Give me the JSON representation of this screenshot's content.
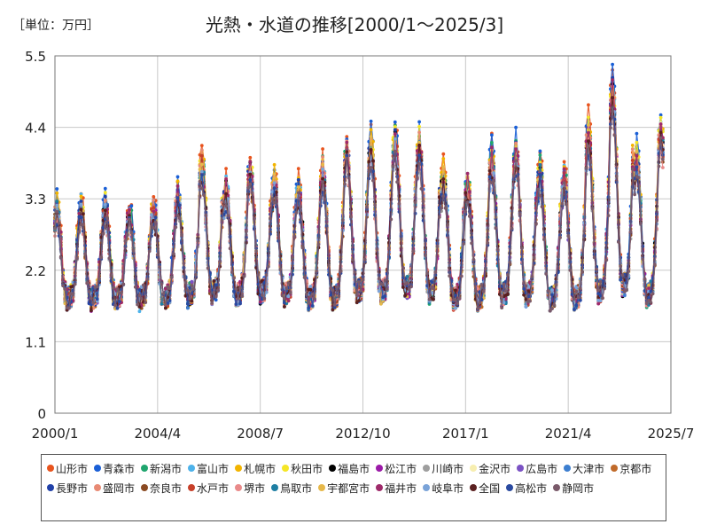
{
  "header": {
    "unit_label": "［単位：万円］",
    "title": "光熱・水道の推移[2000/1～2025/3]"
  },
  "chart_data": {
    "type": "line",
    "title": "光熱・水道の推移[2000/1～2025/3]",
    "ylabel": "［単位：万円］",
    "ylim": [
      0,
      5.5
    ],
    "yticks": [
      0,
      1.1,
      2.2,
      3.3,
      4.4,
      5.5
    ],
    "ytick_labels": [
      "0",
      "1.1",
      "2.2",
      "3.3",
      "4.4",
      "5.5"
    ],
    "xlim": [
      "2000/1",
      "2025/7"
    ],
    "xticks": [
      "2000/1",
      "2004/4",
      "2008/7",
      "2012/10",
      "2017/1",
      "2021/4",
      "2025/7"
    ],
    "grid": true,
    "legend_position": "bottom",
    "peaks_approx": [
      {
        "year": 2001,
        "peak": 3.2,
        "trough": 1.7
      },
      {
        "year": 2002,
        "peak": 3.2,
        "trough": 1.7
      },
      {
        "year": 2003,
        "peak": 3.1,
        "trough": 1.7
      },
      {
        "year": 2004,
        "peak": 3.2,
        "trough": 1.7
      },
      {
        "year": 2005,
        "peak": 3.4,
        "trough": 1.75
      },
      {
        "year": 2006,
        "peak": 3.9,
        "trough": 1.8
      },
      {
        "year": 2007,
        "peak": 3.5,
        "trough": 1.75
      },
      {
        "year": 2008,
        "peak": 3.8,
        "trough": 1.8
      },
      {
        "year": 2009,
        "peak": 3.6,
        "trough": 1.75
      },
      {
        "year": 2010,
        "peak": 3.5,
        "trough": 1.7
      },
      {
        "year": 2011,
        "peak": 3.8,
        "trough": 1.7
      },
      {
        "year": 2012,
        "peak": 4.1,
        "trough": 1.8
      },
      {
        "year": 2013,
        "peak": 4.2,
        "trough": 1.8
      },
      {
        "year": 2014,
        "peak": 4.3,
        "trough": 1.85
      },
      {
        "year": 2015,
        "peak": 4.2,
        "trough": 1.8
      },
      {
        "year": 2016,
        "peak": 3.7,
        "trough": 1.7
      },
      {
        "year": 2017,
        "peak": 3.6,
        "trough": 1.7
      },
      {
        "year": 2018,
        "peak": 4.0,
        "trough": 1.75
      },
      {
        "year": 2019,
        "peak": 4.1,
        "trough": 1.75
      },
      {
        "year": 2020,
        "peak": 3.8,
        "trough": 1.7
      },
      {
        "year": 2021,
        "peak": 3.7,
        "trough": 1.7
      },
      {
        "year": 2022,
        "peak": 4.4,
        "trough": 1.8
      },
      {
        "year": 2023,
        "peak": 5.1,
        "trough": 1.9
      },
      {
        "year": 2024,
        "peak": 4.0,
        "trough": 1.75
      },
      {
        "year": 2025,
        "peak": 4.4,
        "trough": 2.2
      }
    ],
    "series": [
      {
        "name": "山形市",
        "color": "#e8541e",
        "amp": 1.08,
        "phase": 0
      },
      {
        "name": "青森市",
        "color": "#1a5fd6",
        "amp": 1.06,
        "phase": 1
      },
      {
        "name": "新潟市",
        "color": "#1fa56e",
        "amp": 1.0,
        "phase": 2
      },
      {
        "name": "富山市",
        "color": "#4db2ea",
        "amp": 1.0,
        "phase": 3
      },
      {
        "name": "札幌市",
        "color": "#f2b400",
        "amp": 1.03,
        "phase": 4
      },
      {
        "name": "秋田市",
        "color": "#f5e626",
        "amp": 1.02,
        "phase": 5
      },
      {
        "name": "福島市",
        "color": "#000000",
        "amp": 0.95,
        "phase": 6
      },
      {
        "name": "松江市",
        "color": "#9b1aa8",
        "amp": 0.94,
        "phase": 7
      },
      {
        "name": "川崎市",
        "color": "#9e9e9e",
        "amp": 0.88,
        "phase": 8
      },
      {
        "name": "金沢市",
        "color": "#f7eeb0",
        "amp": 0.96,
        "phase": 9
      },
      {
        "name": "広島市",
        "color": "#7b52c4",
        "amp": 0.9,
        "phase": 10
      },
      {
        "name": "大津市",
        "color": "#3d7fd0",
        "amp": 0.93,
        "phase": 11
      },
      {
        "name": "京都市",
        "color": "#c06a2a",
        "amp": 0.91,
        "phase": 12
      },
      {
        "name": "長野市",
        "color": "#2040a8",
        "amp": 0.98,
        "phase": 13
      },
      {
        "name": "盛岡市",
        "color": "#e88a74",
        "amp": 1.0,
        "phase": 14
      },
      {
        "name": "奈良市",
        "color": "#8a4a22",
        "amp": 0.9,
        "phase": 15
      },
      {
        "name": "水戸市",
        "color": "#c7402a",
        "amp": 0.95,
        "phase": 16
      },
      {
        "name": "堺市",
        "color": "#e98a8a",
        "amp": 0.88,
        "phase": 17
      },
      {
        "name": "鳥取市",
        "color": "#1e7fa3",
        "amp": 0.93,
        "phase": 18
      },
      {
        "name": "宇都宮市",
        "color": "#e6b84a",
        "amp": 0.96,
        "phase": 19
      },
      {
        "name": "福井市",
        "color": "#9e2a6a",
        "amp": 0.97,
        "phase": 20
      },
      {
        "name": "岐阜市",
        "color": "#7aa3d8",
        "amp": 0.9,
        "phase": 21
      },
      {
        "name": "全国",
        "color": "#5a2020",
        "amp": 0.9,
        "phase": 22
      },
      {
        "name": "高松市",
        "color": "#2a4aa0",
        "amp": 0.87,
        "phase": 23
      },
      {
        "name": "静岡市",
        "color": "#7a5a6a",
        "amp": 0.85,
        "phase": 24
      }
    ]
  }
}
